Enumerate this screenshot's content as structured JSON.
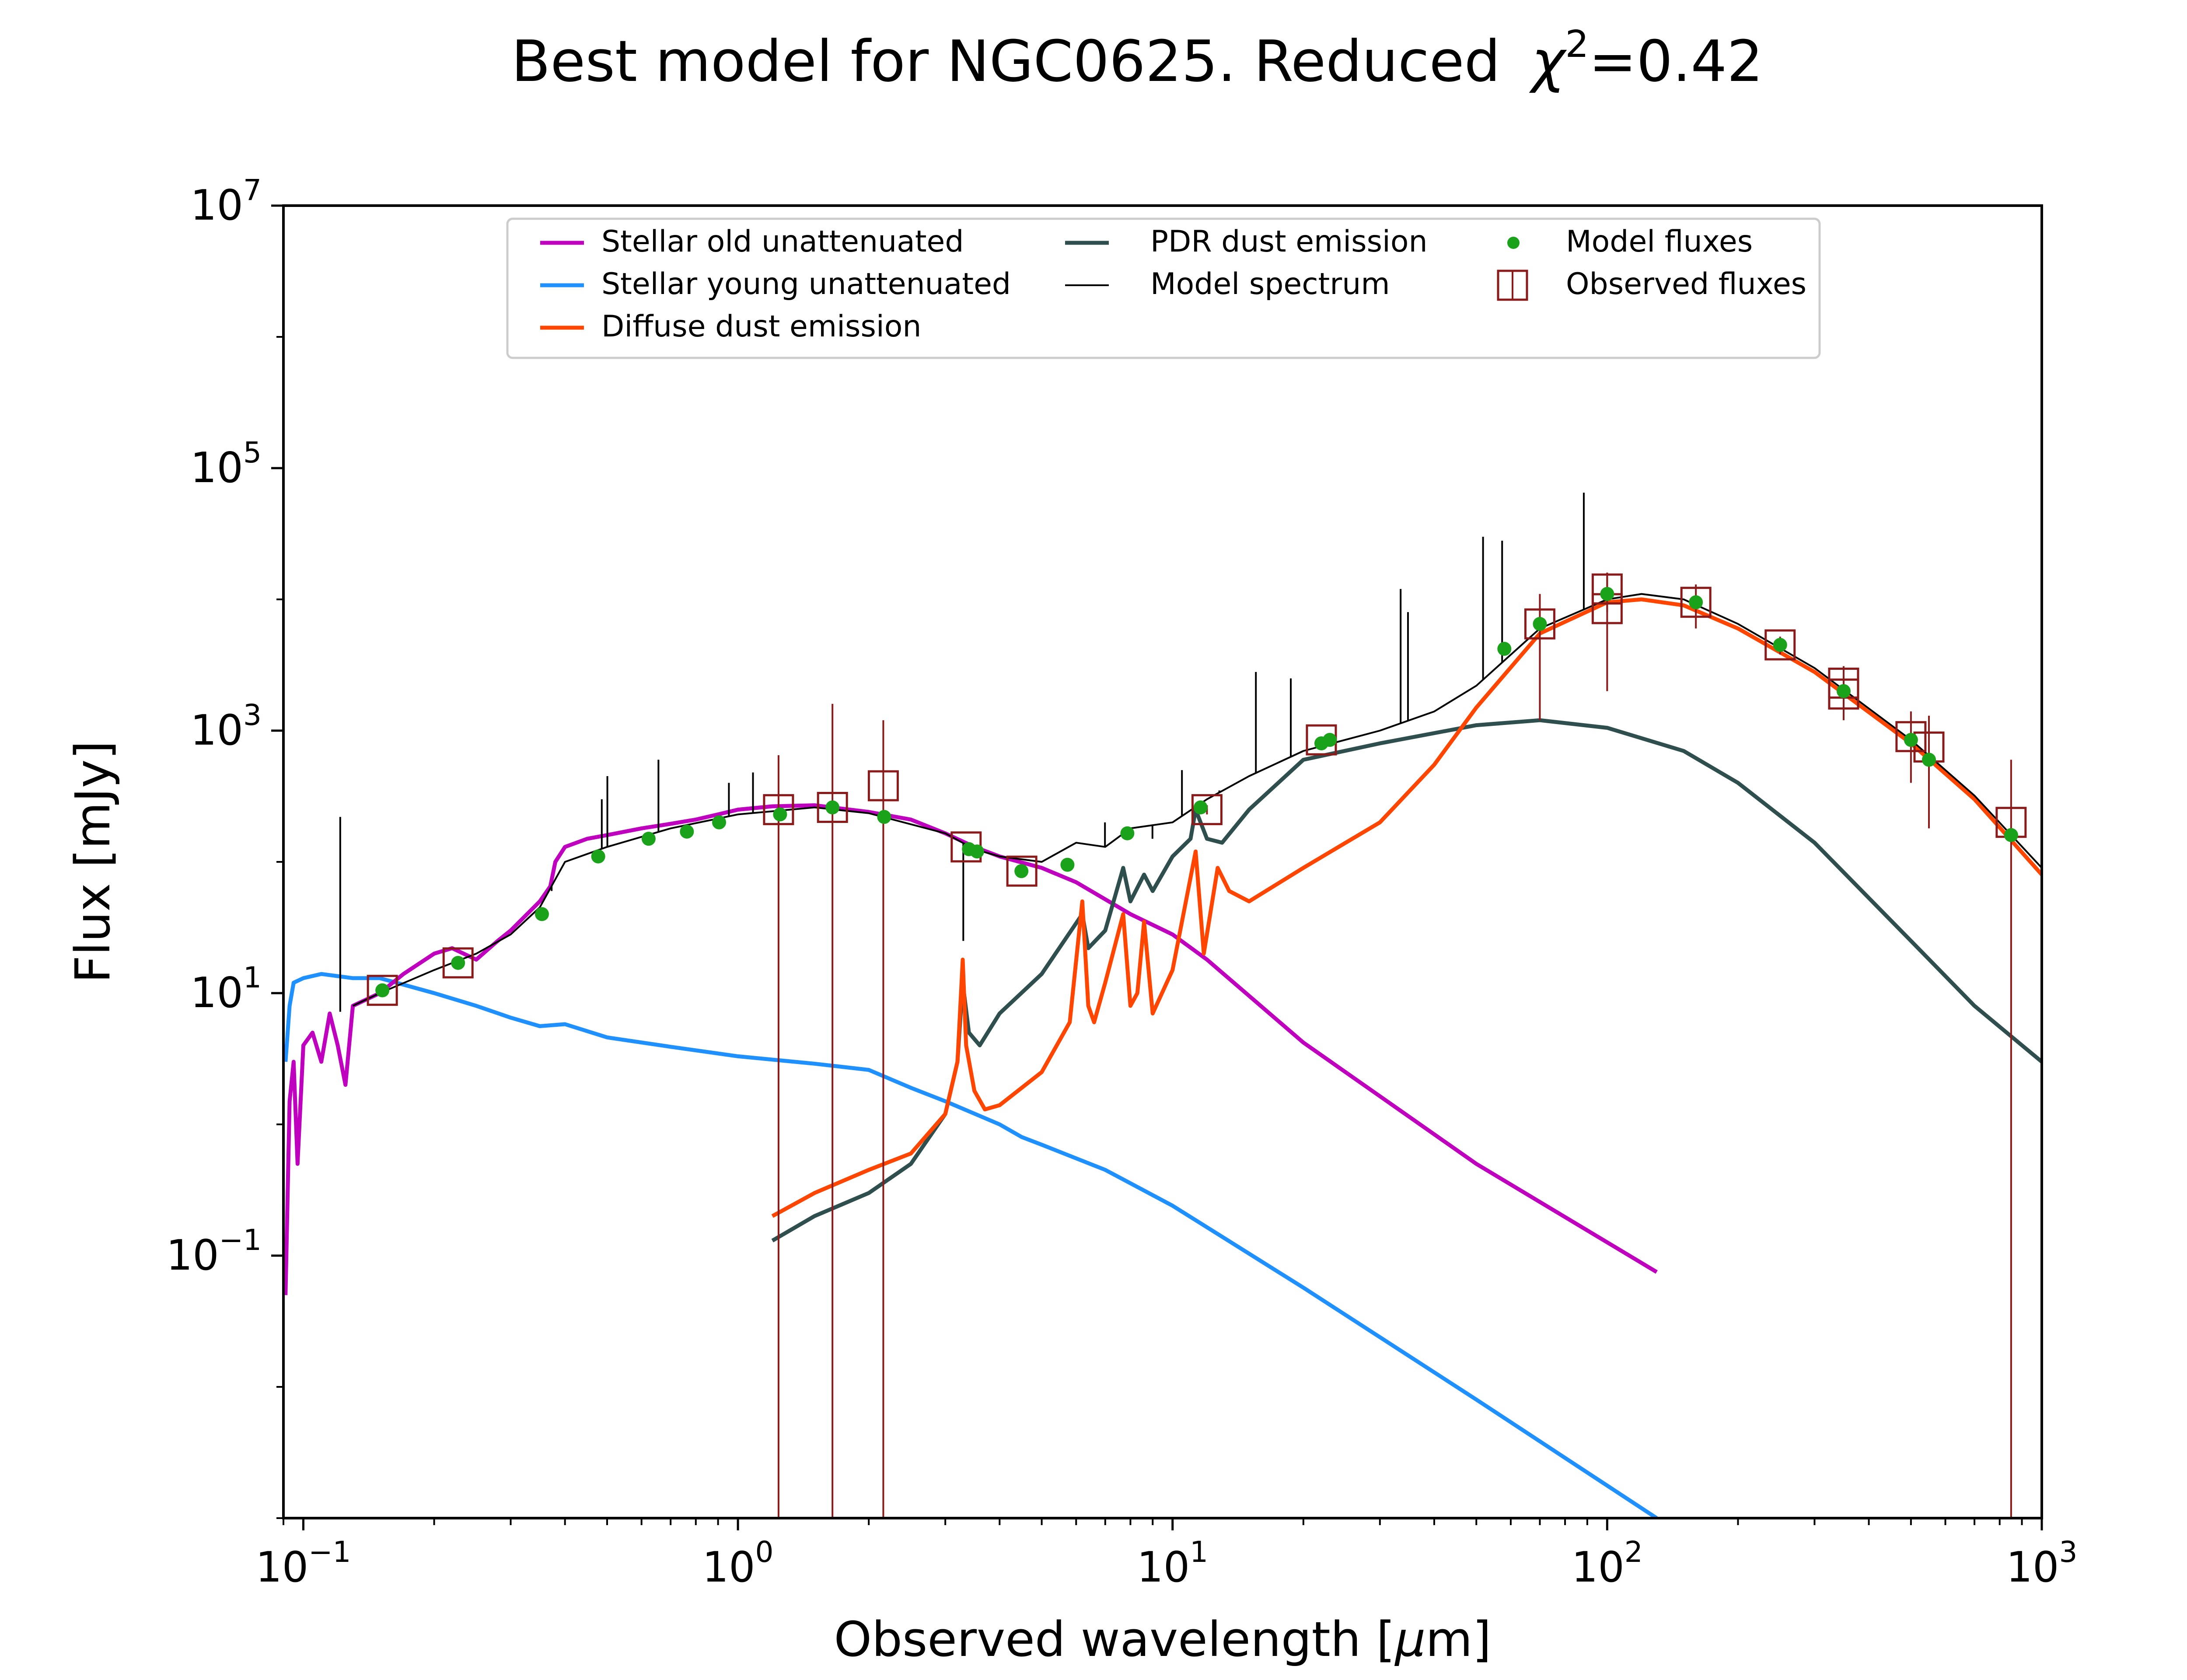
{
  "chart_data": {
    "type": "line",
    "title": "Best model for NGC0625. Reduced",
    "title_chi_symbol": "χ",
    "title_chi_exponent": "2",
    "title_chi_value": "=0.42",
    "xlabel_prefix": "Observed wavelength [",
    "xlabel_mu": "μ",
    "xlabel_suffix": "m]",
    "ylabel": "Flux [mJy]",
    "xscale": "log",
    "yscale": "log",
    "xlim": [
      0.09,
      1000
    ],
    "ylim": [
      0.001,
      10000000
    ],
    "legend_position": "upper-center",
    "x_ticks": [
      {
        "value": 0.1,
        "base": "10",
        "exp": "−1"
      },
      {
        "value": 1,
        "base": "10",
        "exp": "0"
      },
      {
        "value": 10,
        "base": "10",
        "exp": "1"
      },
      {
        "value": 100,
        "base": "10",
        "exp": "2"
      },
      {
        "value": 1000,
        "base": "10",
        "exp": "3"
      }
    ],
    "y_ticks": [
      {
        "value": 0.1,
        "base": "10",
        "exp": "−1"
      },
      {
        "value": 10,
        "base": "10",
        "exp": "1"
      },
      {
        "value": 1000,
        "base": "10",
        "exp": "3"
      },
      {
        "value": 100000,
        "base": "10",
        "exp": "5"
      },
      {
        "value": 10000000,
        "base": "10",
        "exp": "7"
      }
    ],
    "series": [
      {
        "name": "Stellar old unattenuated",
        "color": "#bf00bf",
        "kind": "line",
        "points": [
          [
            0.091,
            0.05
          ],
          [
            0.093,
            1.5
          ],
          [
            0.095,
            3
          ],
          [
            0.097,
            0.5
          ],
          [
            0.1,
            4
          ],
          [
            0.105,
            5
          ],
          [
            0.11,
            3
          ],
          [
            0.115,
            7
          ],
          [
            0.12,
            4
          ],
          [
            0.125,
            2
          ],
          [
            0.13,
            8
          ],
          [
            0.15,
            10
          ],
          [
            0.17,
            14
          ],
          [
            0.2,
            20
          ],
          [
            0.22,
            22
          ],
          [
            0.25,
            18
          ],
          [
            0.28,
            25
          ],
          [
            0.3,
            30
          ],
          [
            0.35,
            50
          ],
          [
            0.37,
            65
          ],
          [
            0.38,
            100
          ],
          [
            0.4,
            130
          ],
          [
            0.45,
            150
          ],
          [
            0.5,
            160
          ],
          [
            0.6,
            180
          ],
          [
            0.7,
            195
          ],
          [
            0.8,
            210
          ],
          [
            0.9,
            230
          ],
          [
            1,
            250
          ],
          [
            1.2,
            265
          ],
          [
            1.5,
            270
          ],
          [
            2,
            240
          ],
          [
            2.5,
            210
          ],
          [
            3,
            165
          ],
          [
            3.5,
            130
          ],
          [
            4,
            110
          ],
          [
            5,
            90
          ],
          [
            6,
            70
          ],
          [
            8,
            40
          ],
          [
            10,
            28
          ],
          [
            12,
            18
          ],
          [
            20,
            4.2
          ],
          [
            50,
            0.5
          ],
          [
            130,
            0.075
          ]
        ]
      },
      {
        "name": "Stellar young unattenuated",
        "color": "#1e90ff",
        "kind": "line",
        "points": [
          [
            0.091,
            3
          ],
          [
            0.093,
            8
          ],
          [
            0.095,
            12
          ],
          [
            0.1,
            13
          ],
          [
            0.11,
            14
          ],
          [
            0.13,
            13
          ],
          [
            0.15,
            13
          ],
          [
            0.2,
            10
          ],
          [
            0.25,
            8
          ],
          [
            0.3,
            6.5
          ],
          [
            0.35,
            5.6
          ],
          [
            0.4,
            5.8
          ],
          [
            0.5,
            4.6
          ],
          [
            0.7,
            3.9
          ],
          [
            1,
            3.3
          ],
          [
            1.5,
            2.9
          ],
          [
            2,
            2.6
          ],
          [
            2.5,
            1.9
          ],
          [
            3,
            1.5
          ],
          [
            4,
            1
          ],
          [
            4.5,
            0.8
          ],
          [
            5,
            0.7
          ],
          [
            7,
            0.45
          ],
          [
            10,
            0.24
          ],
          [
            20,
            0.057
          ],
          [
            50,
            0.008
          ],
          [
            130,
            0.001
          ]
        ]
      },
      {
        "name": "Diffuse dust emission",
        "color": "#ff4500",
        "kind": "line",
        "points": [
          [
            1.2,
            0.2
          ],
          [
            1.5,
            0.3
          ],
          [
            2,
            0.45
          ],
          [
            2.5,
            0.6
          ],
          [
            3,
            1.2
          ],
          [
            3.2,
            3
          ],
          [
            3.29,
            18
          ],
          [
            3.35,
            4
          ],
          [
            3.5,
            1.8
          ],
          [
            3.7,
            1.3
          ],
          [
            4,
            1.4
          ],
          [
            5,
            2.5
          ],
          [
            5.8,
            6
          ],
          [
            6.2,
            50
          ],
          [
            6.4,
            8
          ],
          [
            6.6,
            6
          ],
          [
            7,
            12
          ],
          [
            7.7,
            40
          ],
          [
            8,
            8
          ],
          [
            8.3,
            10
          ],
          [
            8.6,
            35
          ],
          [
            9,
            7
          ],
          [
            10,
            15
          ],
          [
            11.3,
            120
          ],
          [
            11.8,
            20
          ],
          [
            12.7,
            90
          ],
          [
            13.5,
            60
          ],
          [
            15,
            50
          ],
          [
            20,
            90
          ],
          [
            30,
            200
          ],
          [
            40,
            550
          ],
          [
            50,
            1500
          ],
          [
            70,
            5500
          ],
          [
            100,
            9500
          ],
          [
            120,
            10000
          ],
          [
            150,
            9000
          ],
          [
            200,
            6000
          ],
          [
            300,
            2800
          ],
          [
            500,
            800
          ],
          [
            700,
            300
          ],
          [
            1000,
            80
          ]
        ]
      },
      {
        "name": "PDR dust emission",
        "color": "#2f4f4f",
        "kind": "line",
        "points": [
          [
            1.2,
            0.13
          ],
          [
            1.5,
            0.2
          ],
          [
            2,
            0.3
          ],
          [
            2.5,
            0.5
          ],
          [
            3,
            1.2
          ],
          [
            3.2,
            3
          ],
          [
            3.29,
            12
          ],
          [
            3.4,
            5
          ],
          [
            3.6,
            4
          ],
          [
            4,
            7
          ],
          [
            5,
            14
          ],
          [
            6.2,
            40
          ],
          [
            6.4,
            22
          ],
          [
            7,
            30
          ],
          [
            7.7,
            90
          ],
          [
            8,
            50
          ],
          [
            8.6,
            80
          ],
          [
            9,
            60
          ],
          [
            10,
            110
          ],
          [
            11,
            150
          ],
          [
            11.3,
            250
          ],
          [
            12,
            150
          ],
          [
            13,
            140
          ],
          [
            15,
            250
          ],
          [
            20,
            600
          ],
          [
            30,
            800
          ],
          [
            50,
            1100
          ],
          [
            70,
            1200
          ],
          [
            100,
            1050
          ],
          [
            150,
            700
          ],
          [
            200,
            400
          ],
          [
            300,
            140
          ],
          [
            500,
            25
          ],
          [
            700,
            8
          ],
          [
            1000,
            3
          ]
        ]
      },
      {
        "name": "Model spectrum",
        "color": "#000000",
        "kind": "thin",
        "points": [
          [
            0.13,
            8
          ],
          [
            0.15,
            10
          ],
          [
            0.2,
            15
          ],
          [
            0.25,
            20
          ],
          [
            0.3,
            28
          ],
          [
            0.35,
            45
          ],
          [
            0.4,
            100
          ],
          [
            0.5,
            130
          ],
          [
            0.7,
            180
          ],
          [
            1,
            230
          ],
          [
            1.5,
            260
          ],
          [
            2,
            235
          ],
          [
            3,
            165
          ],
          [
            3.5,
            125
          ],
          [
            4,
            110
          ],
          [
            5,
            100
          ],
          [
            6,
            140
          ],
          [
            7,
            130
          ],
          [
            8,
            180
          ],
          [
            10,
            200
          ],
          [
            12,
            300
          ],
          [
            15,
            450
          ],
          [
            20,
            700
          ],
          [
            30,
            1000
          ],
          [
            40,
            1400
          ],
          [
            50,
            2200
          ],
          [
            70,
            6000
          ],
          [
            100,
            10000
          ],
          [
            120,
            11000
          ],
          [
            150,
            10000
          ],
          [
            200,
            6500
          ],
          [
            300,
            3000
          ],
          [
            500,
            850
          ],
          [
            700,
            320
          ],
          [
            1000,
            90
          ]
        ]
      }
    ],
    "emission_lines": [
      [
        0.1216,
        220
      ],
      [
        0.3727,
        60
      ],
      [
        0.4861,
        300
      ],
      [
        0.5007,
        450
      ],
      [
        0.6563,
        600
      ],
      [
        0.9532,
        400
      ],
      [
        1.083,
        480
      ],
      [
        3.3,
        25
      ],
      [
        6.99,
        200
      ],
      [
        8.99,
        150
      ],
      [
        10.51,
        500
      ],
      [
        12.81,
        350
      ],
      [
        15.55,
        2800
      ],
      [
        18.71,
        2500
      ],
      [
        33.48,
        12000
      ],
      [
        34.81,
        8000
      ],
      [
        51.81,
        30000
      ],
      [
        57.32,
        28000
      ],
      [
        88.36,
        65000
      ]
    ],
    "model_fluxes": {
      "name": "Model fluxes",
      "color": "#1aa31a",
      "points": [
        [
          0.152,
          10.5
        ],
        [
          0.227,
          17
        ],
        [
          0.354,
          40
        ],
        [
          0.477,
          110
        ],
        [
          0.623,
          150
        ],
        [
          0.763,
          170
        ],
        [
          0.905,
          200
        ],
        [
          1.25,
          230
        ],
        [
          1.65,
          260
        ],
        [
          2.17,
          220
        ],
        [
          3.4,
          125
        ],
        [
          3.55,
          120
        ],
        [
          4.49,
          85
        ],
        [
          5.73,
          95
        ],
        [
          7.87,
          165
        ],
        [
          11.6,
          260
        ],
        [
          22,
          800
        ],
        [
          23,
          850
        ],
        [
          58,
          4200
        ],
        [
          70,
          6500
        ],
        [
          100,
          11000
        ],
        [
          160,
          9500
        ],
        [
          250,
          4500
        ],
        [
          350,
          2000
        ],
        [
          500,
          850
        ],
        [
          550,
          600
        ],
        [
          850,
          160
        ]
      ]
    },
    "observed_fluxes": {
      "name": "Observed fluxes",
      "color": "#8b1a1a",
      "points": [
        {
          "x": 0.152,
          "y": 10.5,
          "lo": 10.0,
          "hi": 11.0
        },
        {
          "x": 0.227,
          "y": 17,
          "lo": 16.0,
          "hi": 18.0
        },
        {
          "x": 1.24,
          "y": 250,
          "lo": 0.001,
          "hi": 650
        },
        {
          "x": 1.65,
          "y": 260,
          "lo": 0.001,
          "hi": 1600
        },
        {
          "x": 2.16,
          "y": 380,
          "lo": 0.001,
          "hi": 1200
        },
        {
          "x": 3.35,
          "y": 130,
          "lo": 120,
          "hi": 140
        },
        {
          "x": 4.5,
          "y": 85,
          "lo": 80,
          "hi": 90
        },
        {
          "x": 12,
          "y": 250,
          "lo": 230,
          "hi": 270
        },
        {
          "x": 22,
          "y": 850,
          "lo": 800,
          "hi": 900
        },
        {
          "x": 70,
          "y": 6500,
          "lo": 1200,
          "hi": 11000
        },
        {
          "x": 100,
          "y": 12000,
          "lo": 8000,
          "hi": 16000
        },
        {
          "x": 100,
          "y": 8500,
          "lo": 2000,
          "hi": 15000
        },
        {
          "x": 160,
          "y": 9500,
          "lo": 6000,
          "hi": 13000
        },
        {
          "x": 250,
          "y": 4500,
          "lo": 3800,
          "hi": 5200
        },
        {
          "x": 350,
          "y": 2300,
          "lo": 1500,
          "hi": 3100
        },
        {
          "x": 350,
          "y": 1900,
          "lo": 1200,
          "hi": 2600
        },
        {
          "x": 500,
          "y": 900,
          "lo": 400,
          "hi": 1400
        },
        {
          "x": 550,
          "y": 750,
          "lo": 180,
          "hi": 1300
        },
        {
          "x": 850,
          "y": 200,
          "lo": 0.001,
          "hi": 600
        }
      ]
    }
  }
}
